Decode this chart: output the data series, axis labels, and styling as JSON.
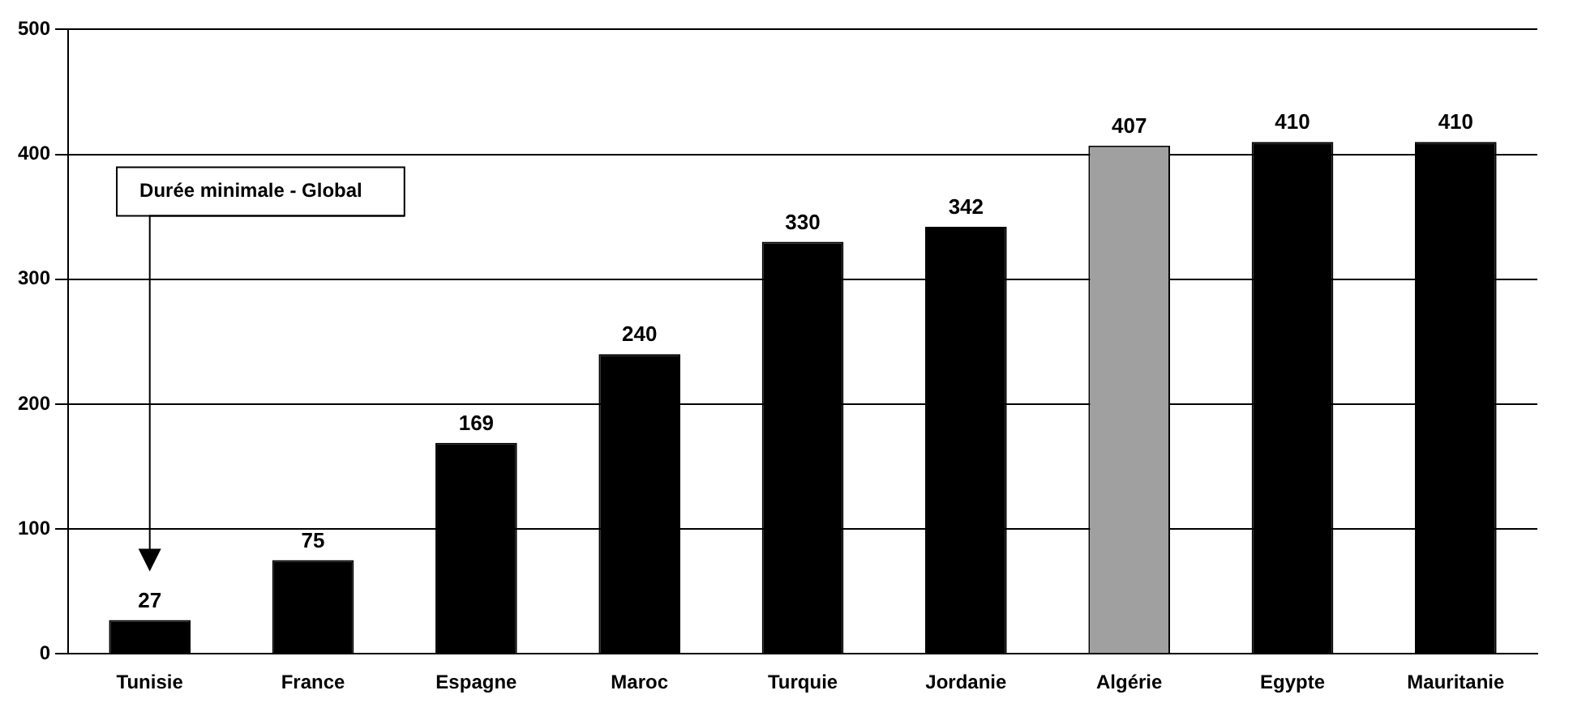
{
  "chart_data": {
    "type": "bar",
    "categories": [
      "Tunisie",
      "France",
      "Espagne",
      "Maroc",
      "Turquie",
      "Jordanie",
      "Algérie",
      "Egypte",
      "Mauritanie"
    ],
    "values": [
      27,
      75,
      169,
      240,
      330,
      342,
      407,
      410,
      410
    ],
    "colors": [
      "#000000",
      "#000000",
      "#000000",
      "#000000",
      "#000000",
      "#000000",
      "#a0a0a0",
      "#000000",
      "#000000"
    ],
    "ylim": [
      0,
      500
    ],
    "yticks": [
      0,
      100,
      200,
      300,
      400,
      500
    ],
    "grid": "y",
    "data_labels": true,
    "annotations": [
      "Durée minimale - Global"
    ]
  }
}
